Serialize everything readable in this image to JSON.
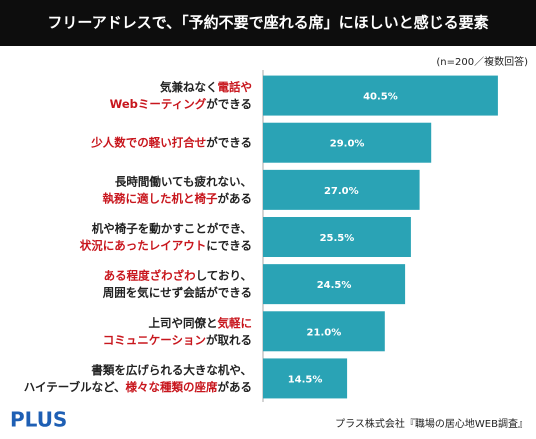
{
  "chart_data": {
    "type": "hbar",
    "title": "フリーアドレスで、「予約不要で座れる席」にほしいと感じる要素",
    "subtitle": "(n=200／複数回答)",
    "categories": [
      [
        [
          {
            "text": "気兼ねなく"
          },
          {
            "text": "電話や",
            "emphasis": true
          }
        ],
        [
          {
            "text": "Webミーティング",
            "emphasis": true
          },
          {
            "text": "ができる"
          }
        ]
      ],
      [
        [
          {
            "text": "少人数での軽い打合せ",
            "emphasis": true
          },
          {
            "text": "ができる"
          }
        ]
      ],
      [
        [
          {
            "text": "長時間働いても疲れない、"
          }
        ],
        [
          {
            "text": "執務に適した机と椅子",
            "emphasis": true
          },
          {
            "text": "がある"
          }
        ]
      ],
      [
        [
          {
            "text": "机や椅子を動かすことができ、"
          }
        ],
        [
          {
            "text": "状況にあったレイアウト",
            "emphasis": true
          },
          {
            "text": "にできる"
          }
        ]
      ],
      [
        [
          {
            "text": "ある程度ざわざわ",
            "emphasis": true
          },
          {
            "text": "しており、"
          }
        ],
        [
          {
            "text": "周囲を気にせず会話ができる"
          }
        ]
      ],
      [
        [
          {
            "text": "上司や同僚と"
          },
          {
            "text": "気軽に",
            "emphasis": true
          }
        ],
        [
          {
            "text": "コミュニケーション",
            "emphasis": true
          },
          {
            "text": "が取れる"
          }
        ]
      ],
      [
        [
          {
            "text": "書類を広げられる大きな机や、"
          }
        ],
        [
          {
            "text": "ハイテーブルなど、"
          },
          {
            "text": "様々な種類の座席",
            "emphasis": true
          },
          {
            "text": "がある"
          }
        ]
      ]
    ],
    "values": [
      40.5,
      29.0,
      27.0,
      25.5,
      24.5,
      21.0,
      14.5
    ],
    "value_labels": [
      "40.5%",
      "29.0%",
      "27.0%",
      "25.5%",
      "24.5%",
      "21.0%",
      "14.5%"
    ],
    "color": "#2aa3b5",
    "emphasis_color": "#c8161d",
    "xlim": [
      0,
      45
    ],
    "logo": "PLUS",
    "source": "プラス株式会社『職場の居心地WEB調査』"
  }
}
